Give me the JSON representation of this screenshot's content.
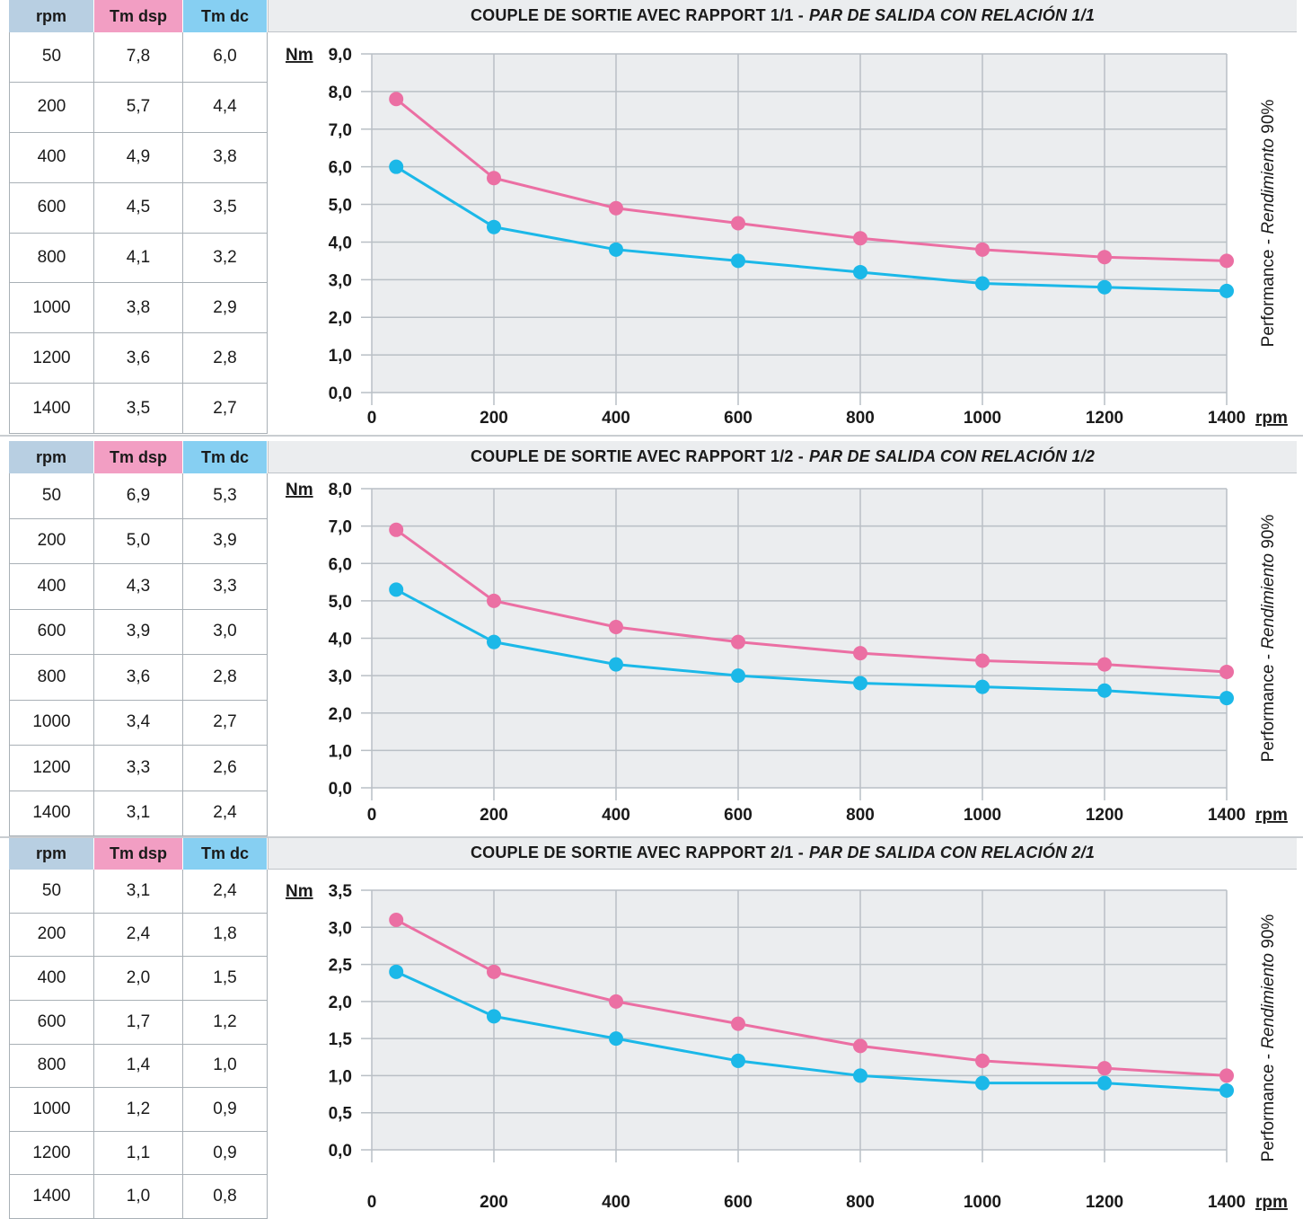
{
  "headers": {
    "rpm": "rpm",
    "tm_dsp": "Tm dsp",
    "tm_dc": "Tm dc"
  },
  "y_unit": "Nm",
  "x_unit": "rpm",
  "side_label": {
    "prefix": "Performance - ",
    "italic": "Rendimiento",
    "suffix": "  90%"
  },
  "colors": {
    "dsp": "#eb6fa3",
    "dc": "#1bb8e8",
    "dsp_header": "#f29ec3",
    "dc_header": "#86cff2",
    "rpm_header": "#b8cfe2"
  },
  "chart_data": [
    {
      "type": "line",
      "title": "COUPLE DE SORTIE AVEC RAPPORT 1/1 - ",
      "title_italic": "PAR DE SALIDA CON RELACIÓN 1/1",
      "x": [
        50,
        200,
        400,
        600,
        800,
        1000,
        1200,
        1400
      ],
      "xticks": [
        "0",
        "200",
        "400",
        "600",
        "800",
        "1000",
        "1200",
        "1400"
      ],
      "ylim": [
        0,
        9
      ],
      "yticks": [
        "0,0",
        "1,0",
        "2,0",
        "3,0",
        "4,0",
        "5,0",
        "6,0",
        "7,0",
        "8,0",
        "9,0"
      ],
      "series": [
        {
          "key": "dsp",
          "values": [
            7.8,
            5.7,
            4.9,
            4.5,
            4.1,
            3.8,
            3.6,
            3.5
          ]
        },
        {
          "key": "dc",
          "values": [
            6.0,
            4.4,
            3.8,
            3.5,
            3.2,
            2.9,
            2.8,
            2.7
          ]
        }
      ],
      "table": [
        [
          "50",
          "7,8",
          "6,0"
        ],
        [
          "200",
          "5,7",
          "4,4"
        ],
        [
          "400",
          "4,9",
          "3,8"
        ],
        [
          "600",
          "4,5",
          "3,5"
        ],
        [
          "800",
          "4,1",
          "3,2"
        ],
        [
          "1000",
          "3,8",
          "2,9"
        ],
        [
          "1200",
          "3,6",
          "2,8"
        ],
        [
          "1400",
          "3,5",
          "2,7"
        ]
      ]
    },
    {
      "type": "line",
      "title": "COUPLE DE SORTIE AVEC RAPPORT 1/2 - ",
      "title_italic": "PAR DE SALIDA CON RELACIÓN 1/2",
      "x": [
        50,
        200,
        400,
        600,
        800,
        1000,
        1200,
        1400
      ],
      "xticks": [
        "0",
        "200",
        "400",
        "600",
        "800",
        "1000",
        "1200",
        "1400"
      ],
      "ylim": [
        0,
        8
      ],
      "yticks": [
        "0,0",
        "1,0",
        "2,0",
        "3,0",
        "4,0",
        "5,0",
        "6,0",
        "7,0",
        "8,0"
      ],
      "series": [
        {
          "key": "dsp",
          "values": [
            6.9,
            5.0,
            4.3,
            3.9,
            3.6,
            3.4,
            3.3,
            3.1
          ]
        },
        {
          "key": "dc",
          "values": [
            5.3,
            3.9,
            3.3,
            3.0,
            2.8,
            2.7,
            2.6,
            2.4
          ]
        }
      ],
      "table": [
        [
          "50",
          "6,9",
          "5,3"
        ],
        [
          "200",
          "5,0",
          "3,9"
        ],
        [
          "400",
          "4,3",
          "3,3"
        ],
        [
          "600",
          "3,9",
          "3,0"
        ],
        [
          "800",
          "3,6",
          "2,8"
        ],
        [
          "1000",
          "3,4",
          "2,7"
        ],
        [
          "1200",
          "3,3",
          "2,6"
        ],
        [
          "1400",
          "3,1",
          "2,4"
        ]
      ]
    },
    {
      "type": "line",
      "title": "COUPLE DE SORTIE AVEC RAPPORT 2/1 - ",
      "title_italic": "PAR DE SALIDA CON RELACIÓN 2/1",
      "x": [
        50,
        200,
        400,
        600,
        800,
        1000,
        1200,
        1400
      ],
      "xticks": [
        "0",
        "200",
        "400",
        "600",
        "800",
        "1000",
        "1200",
        "1400"
      ],
      "ylim": [
        0,
        3.5
      ],
      "yticks": [
        "0,0",
        "0,5",
        "1,0",
        "1,5",
        "2,0",
        "2,5",
        "3,0",
        "3,5"
      ],
      "series": [
        {
          "key": "dsp",
          "values": [
            3.1,
            2.4,
            2.0,
            1.7,
            1.4,
            1.2,
            1.1,
            1.0
          ]
        },
        {
          "key": "dc",
          "values": [
            2.4,
            1.8,
            1.5,
            1.2,
            1.0,
            0.9,
            0.9,
            0.8
          ]
        }
      ],
      "table": [
        [
          "50",
          "3,1",
          "2,4"
        ],
        [
          "200",
          "2,4",
          "1,8"
        ],
        [
          "400",
          "2,0",
          "1,5"
        ],
        [
          "600",
          "1,7",
          "1,2"
        ],
        [
          "800",
          "1,4",
          "1,0"
        ],
        [
          "1000",
          "1,2",
          "0,9"
        ],
        [
          "1200",
          "1,1",
          "0,9"
        ],
        [
          "1400",
          "1,0",
          "0,8"
        ]
      ]
    }
  ]
}
